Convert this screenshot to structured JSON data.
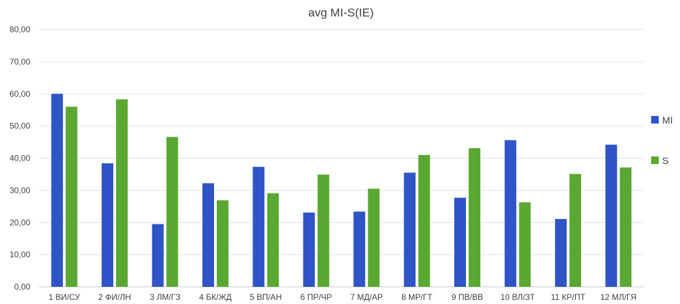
{
  "chart_data": {
    "type": "bar",
    "title": "avg MI-S(IE)",
    "xlabel": "",
    "ylabel": "",
    "ylim": [
      0,
      80
    ],
    "yticks": [
      "0,00",
      "10,00",
      "20,00",
      "30,00",
      "40,00",
      "50,00",
      "60,00",
      "70,00",
      "80,00"
    ],
    "grid": true,
    "legend": "right",
    "categories": [
      "1 ВИ/СУ",
      "2 ФИ/ЛН",
      "3 ЛМ/ГЗ",
      "4 БК/ЖД",
      "5 ВП/АН",
      "6 ПР/ЧР",
      "7 МД/АР",
      "8 МР/ГТ",
      "9 ПВ/ВВ",
      "10 ВЛ/ЗТ",
      "11 КР/ПТ",
      "12 МЛ/ГЯ"
    ],
    "series": [
      {
        "name": "MI",
        "color": "#2f54c7",
        "values": [
          60.0,
          38.4,
          19.5,
          32.2,
          37.3,
          23.1,
          23.4,
          35.5,
          27.7,
          45.6,
          21.1,
          44.2
        ]
      },
      {
        "name": "S",
        "color": "#5aa832",
        "values": [
          56.0,
          58.3,
          46.6,
          26.9,
          29.1,
          34.9,
          30.5,
          41.0,
          43.1,
          26.3,
          35.1,
          37.1
        ]
      }
    ]
  }
}
